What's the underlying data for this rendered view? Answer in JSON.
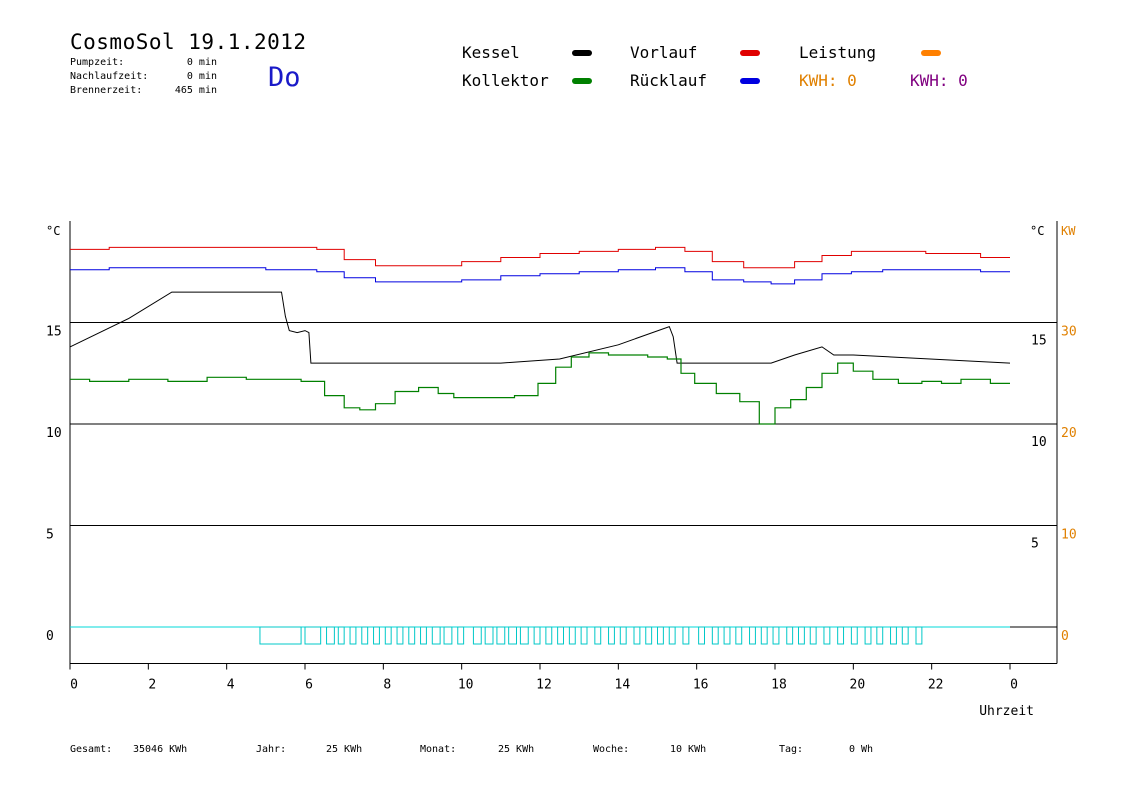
{
  "header": {
    "title": "CosmoSol 19.1.2012",
    "weekday": "Do",
    "stats": [
      {
        "label": "Pumpzeit:",
        "value": "0 min"
      },
      {
        "label": "Nachlaufzeit:",
        "value": "0 min"
      },
      {
        "label": "Brennerzeit:",
        "value": "465 min"
      }
    ]
  },
  "legend": {
    "items": [
      {
        "label": "Kessel",
        "color": "#000000"
      },
      {
        "label": "Vorlauf",
        "color": "#e00000"
      },
      {
        "label": "Leistung",
        "color": "#ff8000"
      },
      {
        "label": "Kollektor",
        "color": "#008000"
      },
      {
        "label": "Rücklauf",
        "color": "#0000e0"
      }
    ],
    "kwh": [
      {
        "text": "KWH: 0",
        "color": "#e08000"
      },
      {
        "text": "KWH: 0",
        "color": "#800080"
      }
    ]
  },
  "footer": [
    {
      "label": "Gesamt:",
      "value": "35046 KWh"
    },
    {
      "label": "Jahr:",
      "value": "25 KWh"
    },
    {
      "label": "Monat:",
      "value": "25 KWh"
    },
    {
      "label": "Woche:",
      "value": "10 KWh"
    },
    {
      "label": "Tag:",
      "value": "0 Wh"
    }
  ],
  "chart_data": {
    "type": "line",
    "xlabel": "Uhrzeit",
    "ylabel_left": "°C",
    "ylabel_right": "°C",
    "ylabel_right2": "KW",
    "x_ticks": [
      "0",
      "2",
      "4",
      "6",
      "8",
      "10",
      "12",
      "14",
      "16",
      "18",
      "20",
      "22",
      "0"
    ],
    "left_ticks": [
      "15",
      "10",
      "5",
      "0"
    ],
    "right_ticks": [
      "15",
      "10",
      "5"
    ],
    "right2_ticks": [
      "30",
      "20",
      "10",
      "0"
    ],
    "xlim": [
      0,
      24
    ],
    "ylim": [
      -1.8,
      20
    ],
    "gridlines": [
      0,
      5,
      10,
      15
    ],
    "series": [
      {
        "name": "Vorlauf",
        "color": "#e00000",
        "x": [
          0,
          2,
          4,
          6,
          6.6,
          7.4,
          8.2,
          9.5,
          10.5,
          11.5,
          12.5,
          13.5,
          14.5,
          15.4,
          16,
          16.8,
          17.6,
          18.2,
          18.8,
          19.6,
          20.3,
          21.2,
          22.5,
          24
        ],
        "y": [
          18.6,
          18.7,
          18.7,
          18.7,
          18.6,
          18.1,
          17.8,
          17.8,
          18.0,
          18.2,
          18.4,
          18.5,
          18.6,
          18.7,
          18.5,
          18.0,
          17.7,
          17.7,
          18.0,
          18.3,
          18.5,
          18.5,
          18.4,
          18.2
        ]
      },
      {
        "name": "Rücklauf",
        "color": "#0000e0",
        "x": [
          0,
          2,
          4,
          6,
          6.6,
          7.4,
          8.2,
          9.5,
          10.5,
          11.5,
          12.5,
          13.5,
          14.5,
          15.4,
          16,
          16.8,
          17.6,
          18.2,
          18.8,
          19.6,
          20.3,
          21.2,
          22.5,
          24
        ],
        "y": [
          17.6,
          17.7,
          17.7,
          17.6,
          17.5,
          17.2,
          17.0,
          17.0,
          17.1,
          17.3,
          17.4,
          17.5,
          17.6,
          17.7,
          17.5,
          17.1,
          17.0,
          16.9,
          17.1,
          17.4,
          17.5,
          17.6,
          17.6,
          17.5
        ]
      },
      {
        "name": "Kessel",
        "color": "#000000",
        "x": [
          0,
          1.5,
          2.6,
          5.4,
          5.5,
          5.6,
          5.8,
          6.0,
          6.1,
          6.15,
          8,
          11,
          12.5,
          14,
          15.3,
          15.4,
          15.5,
          16.2,
          17.9,
          18.5,
          19.2,
          19.5,
          20,
          24
        ],
        "y": [
          13.8,
          15.2,
          16.5,
          16.5,
          15.3,
          14.6,
          14.5,
          14.6,
          14.5,
          13.0,
          13.0,
          13.0,
          13.2,
          13.9,
          14.8,
          14.3,
          13.0,
          13.0,
          13.0,
          13.4,
          13.8,
          13.4,
          13.4,
          13.0
        ]
      },
      {
        "name": "Kollektor",
        "color": "#008000",
        "x": [
          0,
          1,
          2,
          3,
          4,
          5,
          5.6,
          6.2,
          6.8,
          7.2,
          7.6,
          8.0,
          8.6,
          9.2,
          9.6,
          10,
          10.5,
          11,
          11.7,
          12.2,
          12.6,
          13.0,
          13.5,
          14,
          14.5,
          15,
          15.5,
          15.7,
          16.2,
          16.8,
          17.4,
          17.8,
          18.2,
          18.6,
          19,
          19.4,
          19.8,
          20.2,
          20.8,
          21.5,
          22,
          22.5,
          23,
          24
        ],
        "y": [
          12.2,
          12.1,
          12.2,
          12.1,
          12.3,
          12.2,
          12.2,
          12.1,
          11.4,
          10.8,
          10.7,
          11.0,
          11.6,
          11.8,
          11.5,
          11.3,
          11.3,
          11.3,
          11.4,
          12.0,
          12.8,
          13.3,
          13.5,
          13.4,
          13.4,
          13.3,
          13.2,
          12.5,
          12.0,
          11.5,
          11.1,
          10.0,
          10.8,
          11.2,
          11.8,
          12.5,
          13.0,
          12.6,
          12.2,
          12.0,
          12.1,
          12.0,
          12.2,
          12.0
        ]
      }
    ],
    "pump_on_intervals": [
      [
        4.85,
        5.9
      ],
      [
        6.0,
        6.4
      ],
      [
        6.55,
        6.75
      ],
      [
        6.85,
        7.0
      ],
      [
        7.15,
        7.3
      ],
      [
        7.45,
        7.6
      ],
      [
        7.75,
        7.9
      ],
      [
        8.05,
        8.2
      ],
      [
        8.35,
        8.5
      ],
      [
        8.65,
        8.8
      ],
      [
        8.95,
        9.1
      ],
      [
        9.25,
        9.45
      ],
      [
        9.55,
        9.75
      ],
      [
        9.9,
        10.05
      ],
      [
        10.3,
        10.5
      ],
      [
        10.6,
        10.8
      ],
      [
        10.9,
        11.1
      ],
      [
        11.2,
        11.4
      ],
      [
        11.5,
        11.7
      ],
      [
        11.85,
        12.0
      ],
      [
        12.15,
        12.3
      ],
      [
        12.45,
        12.6
      ],
      [
        12.75,
        12.9
      ],
      [
        13.05,
        13.2
      ],
      [
        13.4,
        13.55
      ],
      [
        13.75,
        13.9
      ],
      [
        14.05,
        14.2
      ],
      [
        14.4,
        14.55
      ],
      [
        14.7,
        14.85
      ],
      [
        15.0,
        15.15
      ],
      [
        15.3,
        15.45
      ],
      [
        15.65,
        15.8
      ],
      [
        16.05,
        16.2
      ],
      [
        16.4,
        16.55
      ],
      [
        16.7,
        16.85
      ],
      [
        17.0,
        17.15
      ],
      [
        17.35,
        17.5
      ],
      [
        17.65,
        17.8
      ],
      [
        17.95,
        18.1
      ],
      [
        18.3,
        18.45
      ],
      [
        18.6,
        18.75
      ],
      [
        18.9,
        19.05
      ],
      [
        19.25,
        19.4
      ],
      [
        19.6,
        19.75
      ],
      [
        19.95,
        20.1
      ],
      [
        20.3,
        20.45
      ],
      [
        20.6,
        20.75
      ],
      [
        20.95,
        21.1
      ],
      [
        21.25,
        21.4
      ],
      [
        21.6,
        21.75
      ]
    ]
  }
}
